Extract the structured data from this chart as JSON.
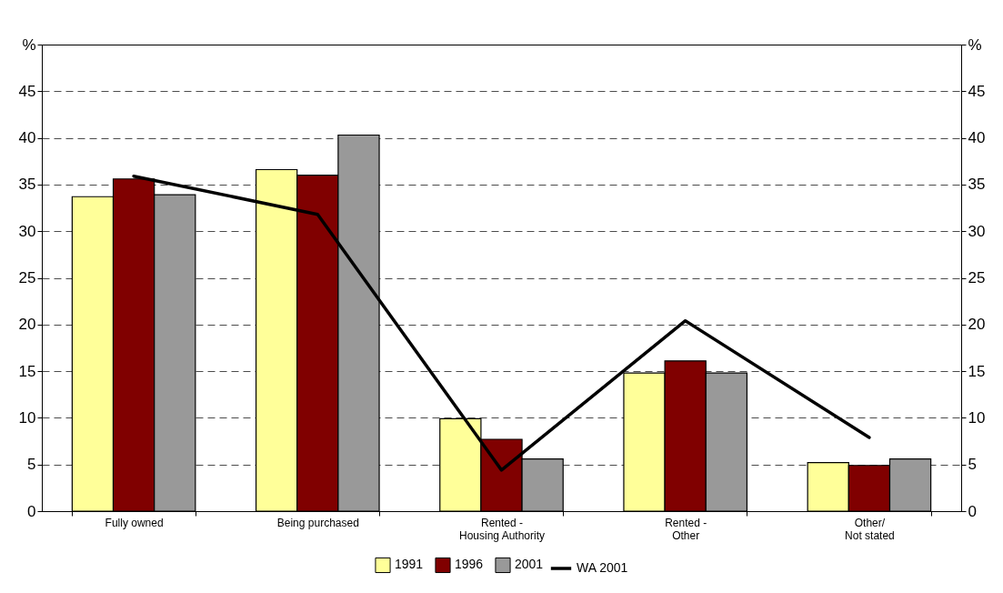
{
  "chart_data": {
    "type": "bar",
    "categories": [
      "Fully owned",
      "Being purchased",
      "Rented -\nHousing Authority",
      "Rented -\nOther",
      "Other/\nNot stated"
    ],
    "series": [
      {
        "name": "1991",
        "color": "#ffff99",
        "values": [
          33.7,
          36.6,
          9.9,
          14.8,
          5.2
        ]
      },
      {
        "name": "1996",
        "color": "#800000",
        "values": [
          35.6,
          36.0,
          7.7,
          16.1,
          4.9
        ]
      },
      {
        "name": "2001",
        "color": "#999999",
        "values": [
          33.9,
          40.3,
          5.6,
          14.8,
          5.6
        ]
      },
      {
        "name": "WA 2001",
        "type": "line",
        "color": "#000000",
        "values": [
          35.9,
          31.8,
          4.4,
          20.4,
          7.9
        ]
      }
    ],
    "ylim": [
      0,
      50
    ],
    "yticks": [
      0,
      5,
      10,
      15,
      20,
      25,
      30,
      35,
      40,
      45,
      {
        "value": 50,
        "label": "%"
      }
    ],
    "y2lim": [
      0,
      50
    ],
    "y2ticks": [
      0,
      5,
      10,
      15,
      20,
      25,
      30,
      35,
      40,
      45,
      {
        "value": 50,
        "label": "%"
      }
    ],
    "grid": "y",
    "legend": "bottom"
  }
}
